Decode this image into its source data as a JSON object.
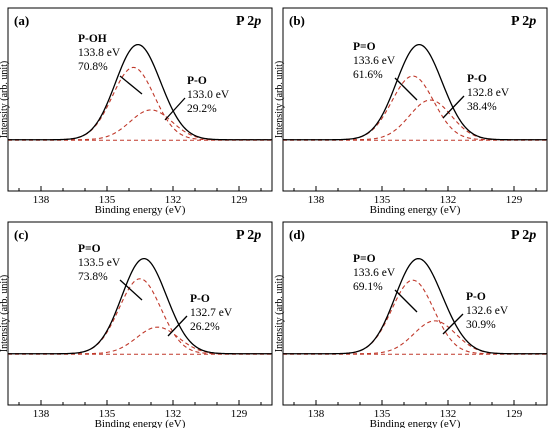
{
  "chart_data": [
    {
      "type": "line",
      "panel_label": "(a)",
      "title": "P 2",
      "title_italic": "p",
      "xlabel": "Binding energy (eV)",
      "ylabel": "Intensity (arb. unit)",
      "xlim": [
        139.5,
        127.5
      ],
      "xticks": [
        138,
        135,
        132,
        129
      ],
      "series": [
        {
          "name": "P-OH",
          "center": 133.8,
          "percent": 70.8,
          "energy_label": "133.8 eV",
          "percent_label": "70.8%"
        },
        {
          "name": "P-O",
          "center": 133.0,
          "percent": 29.2,
          "energy_label": "133.0 eV",
          "percent_label": "29.2%"
        }
      ]
    },
    {
      "type": "line",
      "panel_label": "(b)",
      "title": "P 2",
      "title_italic": "p",
      "xlabel": "Binding energy (eV)",
      "ylabel": "Intensity (arb. unit)",
      "xlim": [
        139.5,
        127.5
      ],
      "xticks": [
        138,
        135,
        132,
        129
      ],
      "series": [
        {
          "name": "P=O",
          "center": 133.6,
          "percent": 61.6,
          "energy_label": "133.6 eV",
          "percent_label": "61.6%"
        },
        {
          "name": "P-O",
          "center": 132.8,
          "percent": 38.4,
          "energy_label": "132.8 eV",
          "percent_label": "38.4%"
        }
      ]
    },
    {
      "type": "line",
      "panel_label": "(c)",
      "title": "P 2",
      "title_italic": "p",
      "xlabel": "Binding energy (eV)",
      "ylabel": "Intensity (arb. unit)",
      "xlim": [
        139.5,
        127.5
      ],
      "xticks": [
        138,
        135,
        132,
        129
      ],
      "series": [
        {
          "name": "P=O",
          "center": 133.5,
          "percent": 73.8,
          "energy_label": "133.5 eV",
          "percent_label": "73.8%"
        },
        {
          "name": "P-O",
          "center": 132.7,
          "percent": 26.2,
          "energy_label": "132.7 eV",
          "percent_label": "26.2%"
        }
      ]
    },
    {
      "type": "line",
      "panel_label": "(d)",
      "title": "P 2",
      "title_italic": "p",
      "xlabel": "Binding energy (eV)",
      "ylabel": "Intensity (arb. unit)",
      "xlim": [
        139.5,
        127.5
      ],
      "xticks": [
        138,
        135,
        132,
        129
      ],
      "series": [
        {
          "name": "P=O",
          "center": 133.6,
          "percent": 69.1,
          "energy_label": "133.6 eV",
          "percent_label": "69.1%"
        },
        {
          "name": "P-O",
          "center": 132.6,
          "percent": 30.9,
          "energy_label": "132.6 eV",
          "percent_label": "30.9%"
        }
      ]
    }
  ]
}
